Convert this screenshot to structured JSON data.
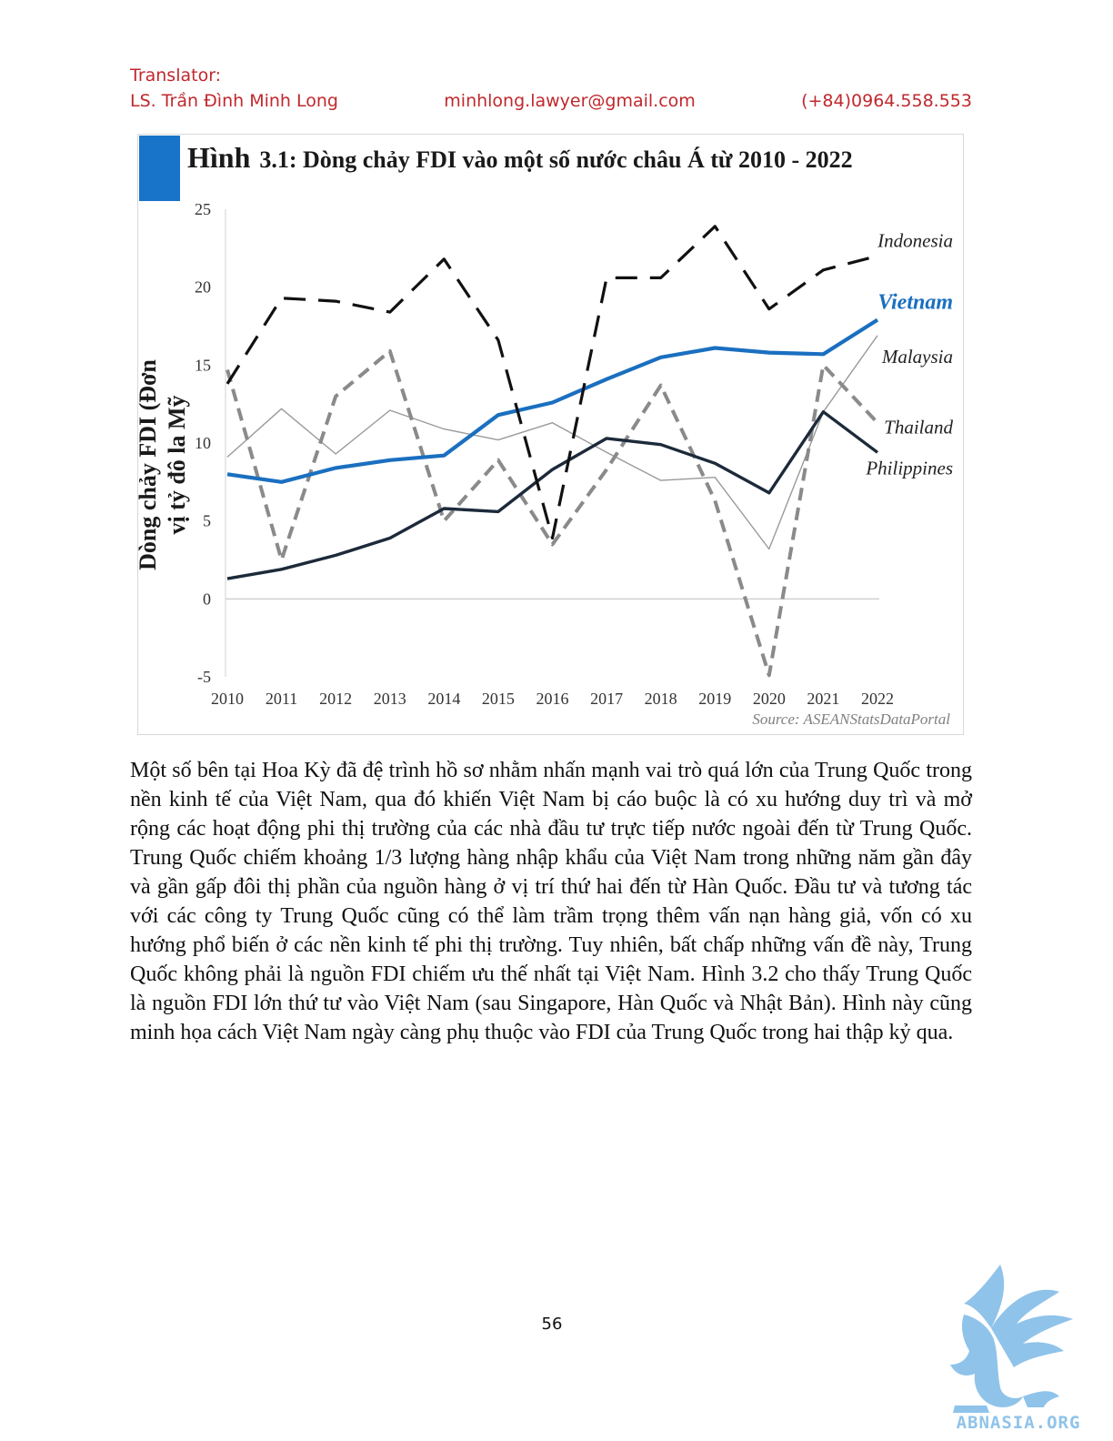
{
  "header": {
    "label": "Translator:",
    "name": "LS. Trần Đình Minh Long",
    "email": "minhlong.lawyer@gmail.com",
    "phone": "(+84)0964.558.553"
  },
  "figure": {
    "title_prefix": "Hình",
    "title_rest": "3.1: Dòng chảy FDI vào một số nước châu Á từ 2010 - 2022",
    "source": "Source: ASEANStatsDataPortal"
  },
  "chart_data": {
    "type": "line",
    "ylabel": [
      "Dòng chảy FDI (Đơn",
      "vị tỷ đô la Mỹ"
    ],
    "xlabel": "",
    "ylim": [
      -5,
      25
    ],
    "yticks": [
      25,
      20,
      15,
      10,
      5,
      0,
      -5
    ],
    "categories": [
      2010,
      2011,
      2012,
      2013,
      2014,
      2015,
      2016,
      2017,
      2018,
      2019,
      2020,
      2021,
      2022
    ],
    "grid": "zero line only",
    "series": [
      {
        "name": "Indonesia",
        "color": "#111111",
        "style": "dashed-black",
        "values": [
          13.8,
          19.3,
          19.1,
          18.4,
          21.8,
          16.6,
          3.9,
          20.6,
          20.6,
          23.9,
          18.6,
          21.1,
          22.0
        ]
      },
      {
        "name": "Vietnam",
        "color": "#1a6fc0",
        "style": "solid-blue",
        "values": [
          8.0,
          7.5,
          8.4,
          8.9,
          9.2,
          11.8,
          12.6,
          14.1,
          15.5,
          16.1,
          15.8,
          15.7,
          17.9
        ]
      },
      {
        "name": "Malaysia",
        "color": "#999999",
        "style": "thin-gray",
        "values": [
          9.1,
          12.2,
          9.3,
          12.1,
          10.9,
          10.2,
          11.3,
          9.4,
          7.6,
          7.8,
          3.2,
          12.0,
          16.9
        ]
      },
      {
        "name": "Thailand",
        "color": "#8a8a8a",
        "style": "dashed-gray",
        "values": [
          14.7,
          2.5,
          13.0,
          15.9,
          5.0,
          8.9,
          3.5,
          8.3,
          13.7,
          6.3,
          -4.9,
          15.0,
          11.3
        ]
      },
      {
        "name": "Philippines",
        "color": "#1c2a3a",
        "style": "solid-dark",
        "values": [
          1.3,
          1.9,
          2.8,
          3.9,
          5.8,
          5.6,
          8.3,
          10.3,
          9.9,
          8.7,
          6.8,
          12.0,
          9.4
        ]
      }
    ]
  },
  "body": {
    "paragraph": "Một số bên tại Hoa Kỳ đã đệ trình hồ sơ nhằm nhấn mạnh vai trò quá lớn của Trung Quốc trong nền kinh tế của Việt Nam, qua đó khiến Việt Nam bị cáo buộc là có xu hướng duy trì và mở rộng các hoạt động phi thị trường của các nhà đầu tư trực tiếp nước ngoài đến từ Trung Quốc. Trung Quốc chiếm khoảng 1/3 lượng hàng nhập khẩu của Việt Nam trong những năm gần đây và gần gấp đôi thị phần của nguồn hàng ở vị trí thứ hai đến từ Hàn Quốc. Đầu tư và tương tác với các công ty Trung Quốc cũng có thể làm trầm trọng thêm vấn nạn hàng giả, vốn có xu hướng phổ biến ở các nền kinh tế phi thị trường. Tuy nhiên, bất chấp những vấn đề này, Trung Quốc không phải là nguồn FDI chiếm ưu thế nhất tại Việt Nam. Hình 3.2 cho thấy Trung Quốc là nguồn FDI lớn thứ tư vào Việt Nam (sau Singapore, Hàn Quốc và Nhật Bản). Hình này cũng minh họa cách Việt Nam ngày càng phụ thuộc vào FDI của Trung Quốc trong hai thập kỷ qua."
  },
  "page_number": "56",
  "logo": {
    "text": "ABNASIA.ORG",
    "icon": "griffin-icon",
    "color": "#8fc3ea"
  }
}
